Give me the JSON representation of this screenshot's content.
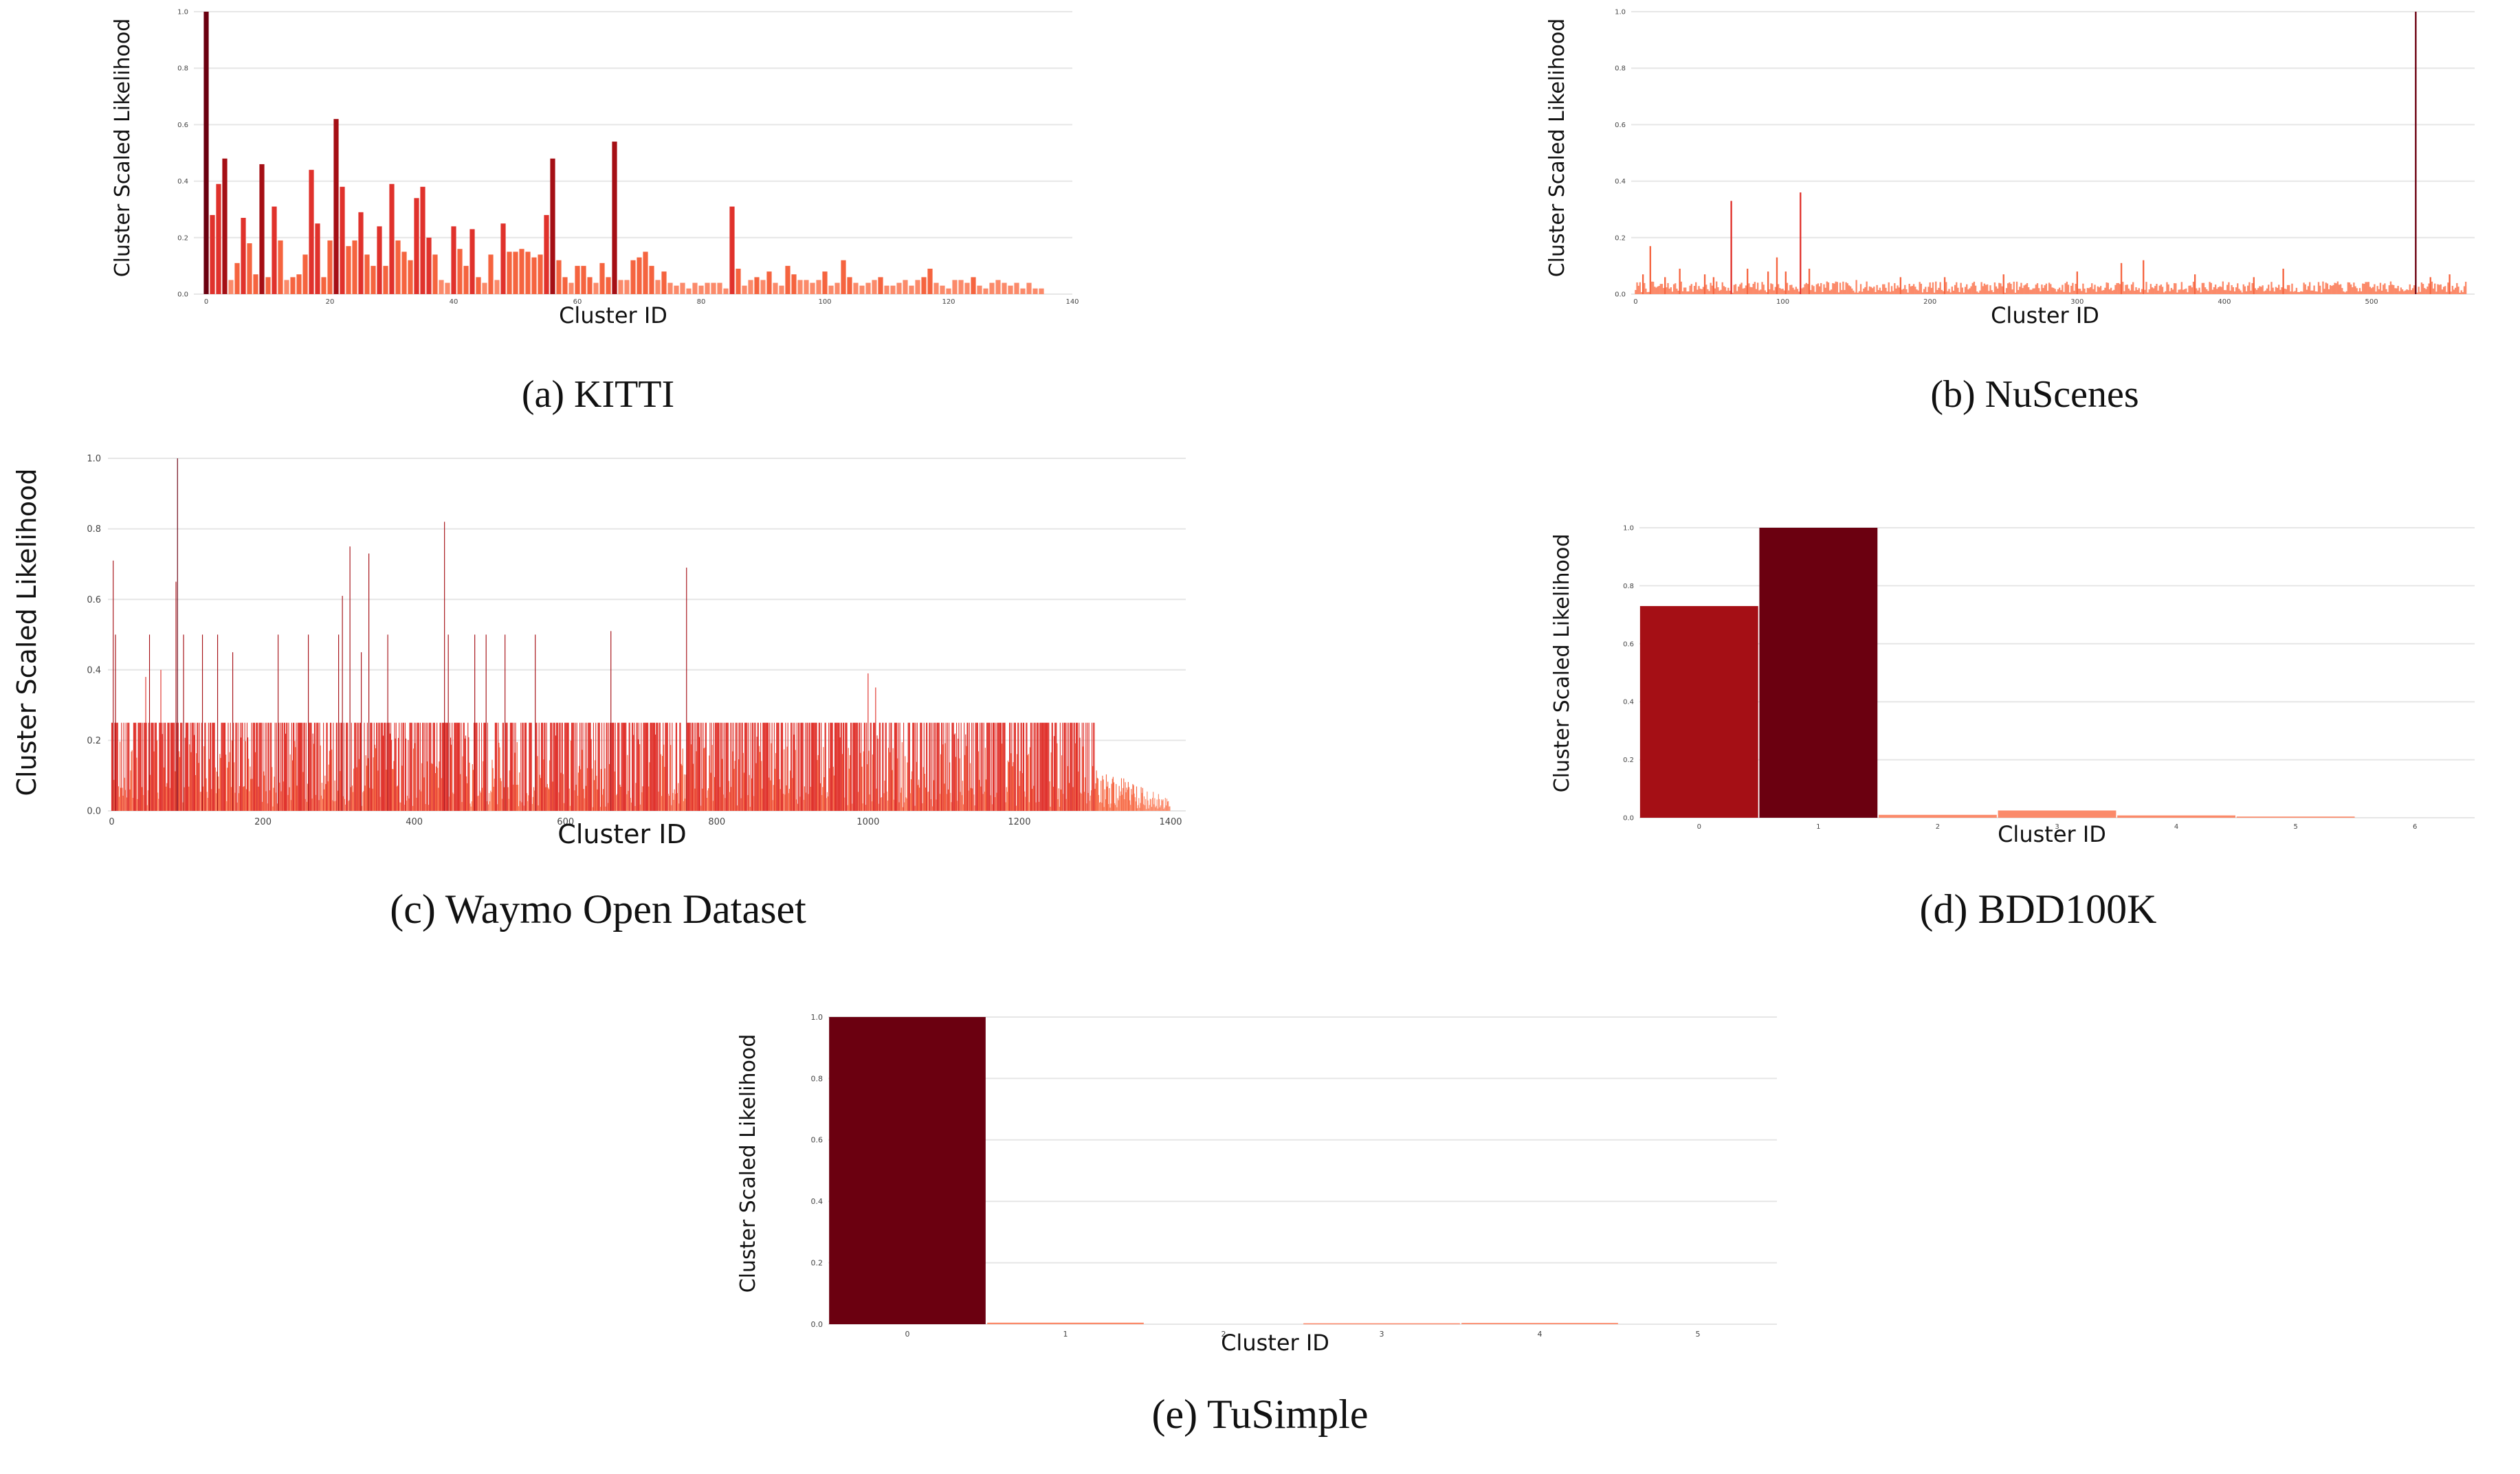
{
  "colors": {
    "bar_max": "#6b0010",
    "bar_high": "#a50f15",
    "bar_mid": "#e0322c",
    "bar_low": "#f5643f",
    "bar_min": "#fb8a6a",
    "grid": "#e6e6e6"
  },
  "chart_data": [
    {
      "id": "kitti",
      "caption": "(a) KITTI",
      "type": "bar",
      "xlabel": "Cluster ID",
      "ylabel": "Cluster Scaled Likelihood",
      "xlim": [
        -2,
        140
      ],
      "ylim": [
        0,
        1.0
      ],
      "xticks": [
        "0",
        "20",
        "40",
        "60",
        "80",
        "100",
        "120",
        "140"
      ],
      "yticks": [
        "0.0",
        "0.2",
        "0.4",
        "0.6",
        "0.8",
        "1.0"
      ],
      "grid": true,
      "x": [
        0,
        1,
        2,
        3,
        4,
        5,
        6,
        7,
        8,
        9,
        10,
        11,
        12,
        13,
        14,
        15,
        16,
        17,
        18,
        19,
        20,
        21,
        22,
        23,
        24,
        25,
        26,
        27,
        28,
        29,
        30,
        31,
        32,
        33,
        34,
        35,
        36,
        37,
        38,
        39,
        40,
        41,
        42,
        43,
        44,
        45,
        46,
        47,
        48,
        49,
        50,
        51,
        52,
        53,
        54,
        55,
        56,
        57,
        58,
        59,
        60,
        61,
        62,
        63,
        64,
        65,
        66,
        67,
        68,
        69,
        70,
        71,
        72,
        73,
        74,
        75,
        76,
        77,
        78,
        79,
        80,
        81,
        82,
        83,
        84,
        85,
        86,
        87,
        88,
        89,
        90,
        91,
        92,
        93,
        94,
        95,
        96,
        97,
        98,
        99,
        100,
        101,
        102,
        103,
        104,
        105,
        106,
        107,
        108,
        109,
        110,
        111,
        112,
        113,
        114,
        115,
        116,
        117,
        118,
        119,
        120,
        121,
        122,
        123,
        124,
        125,
        126,
        127,
        128,
        129,
        130,
        131,
        132,
        133,
        134,
        135
      ],
      "values": [
        1.0,
        0.28,
        0.39,
        0.48,
        0.05,
        0.11,
        0.27,
        0.18,
        0.07,
        0.46,
        0.06,
        0.31,
        0.19,
        0.05,
        0.06,
        0.07,
        0.14,
        0.44,
        0.25,
        0.06,
        0.19,
        0.62,
        0.38,
        0.17,
        0.19,
        0.29,
        0.14,
        0.1,
        0.24,
        0.1,
        0.39,
        0.19,
        0.15,
        0.12,
        0.34,
        0.38,
        0.2,
        0.14,
        0.05,
        0.04,
        0.24,
        0.16,
        0.1,
        0.23,
        0.06,
        0.04,
        0.14,
        0.05,
        0.25,
        0.15,
        0.15,
        0.16,
        0.15,
        0.13,
        0.14,
        0.28,
        0.48,
        0.12,
        0.06,
        0.04,
        0.1,
        0.1,
        0.06,
        0.04,
        0.11,
        0.06,
        0.54,
        0.05,
        0.05,
        0.12,
        0.13,
        0.15,
        0.1,
        0.05,
        0.08,
        0.04,
        0.03,
        0.04,
        0.02,
        0.04,
        0.03,
        0.04,
        0.04,
        0.04,
        0.02,
        0.31,
        0.09,
        0.03,
        0.05,
        0.06,
        0.05,
        0.08,
        0.04,
        0.03,
        0.1,
        0.07,
        0.05,
        0.05,
        0.04,
        0.05,
        0.08,
        0.03,
        0.04,
        0.12,
        0.06,
        0.04,
        0.03,
        0.04,
        0.05,
        0.06,
        0.03,
        0.03,
        0.04,
        0.05,
        0.03,
        0.05,
        0.06,
        0.09,
        0.04,
        0.03,
        0.02,
        0.05,
        0.05,
        0.04,
        0.06,
        0.03,
        0.02,
        0.04,
        0.05,
        0.04,
        0.03,
        0.04,
        0.02,
        0.04,
        0.02,
        0.02
      ]
    },
    {
      "id": "nuscenes",
      "caption": "(b) NuScenes",
      "type": "bar",
      "xlabel": "Cluster ID",
      "ylabel": "Cluster Scaled Likelihood",
      "xlim": [
        -3,
        570
      ],
      "ylim": [
        0,
        1.0
      ],
      "xticks": [
        "0",
        "100",
        "200",
        "300",
        "400",
        "500"
      ],
      "yticks": [
        "0.0",
        "0.2",
        "0.4",
        "0.6",
        "0.8",
        "1.0"
      ],
      "grid": true,
      "spikes": [
        {
          "x": 5,
          "value": 0.07
        },
        {
          "x": 10,
          "value": 0.17
        },
        {
          "x": 20,
          "value": 0.06
        },
        {
          "x": 30,
          "value": 0.09
        },
        {
          "x": 47,
          "value": 0.07
        },
        {
          "x": 53,
          "value": 0.06
        },
        {
          "x": 65,
          "value": 0.33
        },
        {
          "x": 76,
          "value": 0.09
        },
        {
          "x": 90,
          "value": 0.08
        },
        {
          "x": 96,
          "value": 0.13
        },
        {
          "x": 102,
          "value": 0.08
        },
        {
          "x": 112,
          "value": 0.36
        },
        {
          "x": 118,
          "value": 0.09
        },
        {
          "x": 150,
          "value": 0.05
        },
        {
          "x": 180,
          "value": 0.06
        },
        {
          "x": 210,
          "value": 0.06
        },
        {
          "x": 250,
          "value": 0.07
        },
        {
          "x": 300,
          "value": 0.08
        },
        {
          "x": 330,
          "value": 0.11
        },
        {
          "x": 345,
          "value": 0.12
        },
        {
          "x": 380,
          "value": 0.07
        },
        {
          "x": 420,
          "value": 0.06
        },
        {
          "x": 440,
          "value": 0.09
        },
        {
          "x": 475,
          "value": 0.04
        },
        {
          "x": 530,
          "value": 1.0
        },
        {
          "x": 540,
          "value": 0.06
        },
        {
          "x": 553,
          "value": 0.07
        }
      ],
      "count": 565,
      "baseline_range": [
        0.005,
        0.045
      ]
    },
    {
      "id": "waymo",
      "caption": "(c) Waymo Open Dataset",
      "type": "bar",
      "xlabel": "Cluster ID",
      "ylabel": "Cluster Scaled Likelihood",
      "xlim": [
        -5,
        1420
      ],
      "ylim": [
        0,
        1.0
      ],
      "xticks": [
        "0",
        "200",
        "400",
        "600",
        "800",
        "1000",
        "1200",
        "1400"
      ],
      "yticks": [
        "0.0",
        "0.2",
        "0.4",
        "0.6",
        "0.8",
        "1.0"
      ],
      "grid": true,
      "spikes": [
        {
          "x": 2,
          "value": 0.71
        },
        {
          "x": 5,
          "value": 0.5
        },
        {
          "x": 45,
          "value": 0.38
        },
        {
          "x": 50,
          "value": 0.5
        },
        {
          "x": 65,
          "value": 0.4
        },
        {
          "x": 85,
          "value": 0.65
        },
        {
          "x": 87,
          "value": 1.0
        },
        {
          "x": 95,
          "value": 0.5
        },
        {
          "x": 120,
          "value": 0.5
        },
        {
          "x": 140,
          "value": 0.5
        },
        {
          "x": 160,
          "value": 0.45
        },
        {
          "x": 220,
          "value": 0.5
        },
        {
          "x": 260,
          "value": 0.5
        },
        {
          "x": 300,
          "value": 0.5
        },
        {
          "x": 305,
          "value": 0.61
        },
        {
          "x": 315,
          "value": 0.75
        },
        {
          "x": 330,
          "value": 0.45
        },
        {
          "x": 340,
          "value": 0.73
        },
        {
          "x": 365,
          "value": 0.5
        },
        {
          "x": 440,
          "value": 0.82
        },
        {
          "x": 445,
          "value": 0.5
        },
        {
          "x": 480,
          "value": 0.5
        },
        {
          "x": 495,
          "value": 0.5
        },
        {
          "x": 520,
          "value": 0.5
        },
        {
          "x": 560,
          "value": 0.5
        },
        {
          "x": 660,
          "value": 0.51
        },
        {
          "x": 760,
          "value": 0.69
        },
        {
          "x": 1000,
          "value": 0.39
        },
        {
          "x": 1010,
          "value": 0.35
        }
      ],
      "count": 1400,
      "plateau_value": 0.25,
      "plateau_end": 1300
    },
    {
      "id": "bdd100k",
      "caption": "(d) BDD100K",
      "type": "bar",
      "xlabel": "Cluster ID",
      "ylabel": "Cluster Scaled Likelihood",
      "ylim": [
        0,
        1.0
      ],
      "categories": [
        "0",
        "1",
        "2",
        "3",
        "4",
        "5",
        "6"
      ],
      "values": [
        0.73,
        1.0,
        0.01,
        0.025,
        0.008,
        0.004,
        0.0
      ],
      "yticks": [
        "0.0",
        "0.2",
        "0.4",
        "0.6",
        "0.8",
        "1.0"
      ],
      "grid": true
    },
    {
      "id": "tusimple",
      "caption": "(e) TuSimple",
      "type": "bar",
      "xlabel": "Cluster ID",
      "ylabel": "Cluster Scaled Likelihood",
      "ylim": [
        0,
        1.0
      ],
      "categories": [
        "0",
        "1",
        "2",
        "3",
        "4",
        "5"
      ],
      "values": [
        1.0,
        0.005,
        0.0,
        0.003,
        0.004,
        0.0
      ],
      "yticks": [
        "0.0",
        "0.2",
        "0.4",
        "0.6",
        "0.8",
        "1.0"
      ],
      "grid": true
    }
  ]
}
